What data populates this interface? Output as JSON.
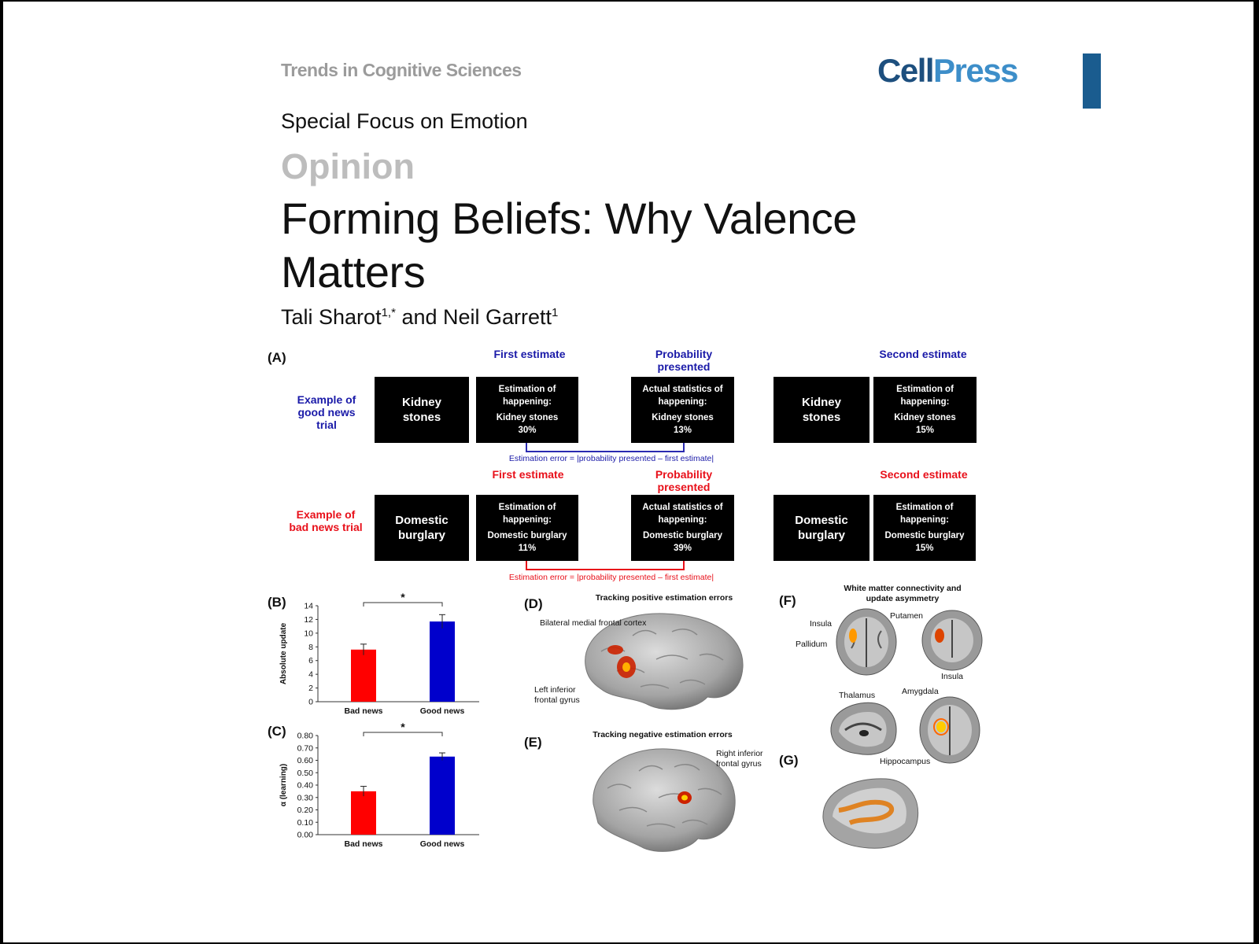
{
  "header": {
    "journal": "Trends in Cognitive Sciences",
    "logo_part1": "Cell",
    "logo_part2": "Press",
    "special_focus": "Special Focus on Emotion",
    "article_type": "Opinion",
    "title_line1": "Forming Beliefs: Why Valence",
    "title_line2": "Matters",
    "author1": "Tali Sharot",
    "author1_sup": "1,*",
    "and": " and Neil Garrett",
    "author2_sup": "1"
  },
  "figure": {
    "labels": {
      "a": "(A)",
      "b": "(B)",
      "c": "(C)",
      "d": "(D)",
      "e": "(E)",
      "f": "(F)",
      "g": "(G)"
    },
    "panel_a": {
      "good": {
        "trial_label": "Example of good news trial",
        "first_header": "First estimate",
        "prob_header": "Probability presented",
        "second_header": "Second estimate",
        "stimulus": "Kidney stones",
        "first_box": {
          "l1": "Estimation of",
          "l2": "happening:",
          "l3": "Kidney stones",
          "l4": "30%"
        },
        "prob_box": {
          "l1": "Actual statistics of",
          "l2": "happening:",
          "l3": "Kidney stones",
          "l4": "13%"
        },
        "second_box": {
          "l1": "Estimation of",
          "l2": "happening:",
          "l3": "Kidney stones",
          "l4": "15%"
        },
        "formula": "Estimation error = |probability presented – first estimate|"
      },
      "bad": {
        "trial_label": "Example of bad news trial",
        "first_header": "First estimate",
        "prob_header": "Probability presented",
        "second_header": "Second estimate",
        "stimulus": "Domestic burglary",
        "first_box": {
          "l1": "Estimation of",
          "l2": "happening:",
          "l3": "Domestic burglary",
          "l4": "11%"
        },
        "prob_box": {
          "l1": "Actual statistics of",
          "l2": "happening:",
          "l3": "Domestic burglary",
          "l4": "39%"
        },
        "second_box": {
          "l1": "Estimation of",
          "l2": "happening:",
          "l3": "Domestic burglary",
          "l4": "15%"
        },
        "formula": "Estimation error = |probability presented – first estimate|"
      }
    },
    "panel_d": {
      "title": "Tracking positive estimation errors",
      "label1": "Bilateral medial frontal cortex",
      "label2": "Left inferior frontal gyrus"
    },
    "panel_e": {
      "title": "Tracking negative estimation errors",
      "label1": "Right inferior frontal gyrus"
    },
    "panel_f": {
      "title": "White matter connectivity and update asymmetry",
      "insula": "Insula",
      "pallidum": "Pallidum",
      "putamen": "Putamen",
      "insula2": "Insula",
      "thalamus": "Thalamus",
      "amygdala": "Amygdala",
      "hippocampus": "Hippocampus"
    }
  },
  "chart_data": [
    {
      "type": "bar",
      "panel": "(B)",
      "categories": [
        "Bad news",
        "Good news"
      ],
      "values": [
        7.6,
        11.7
      ],
      "errors": [
        0.8,
        1.0
      ],
      "colors": [
        "#ff0000",
        "#0000cc"
      ],
      "ylabel": "Absolute update",
      "ylim": [
        0,
        14
      ],
      "yticks": [
        "0",
        "2",
        "4",
        "6",
        "8",
        "10",
        "12",
        "14"
      ],
      "significance": "*"
    },
    {
      "type": "bar",
      "panel": "(C)",
      "categories": [
        "Bad news",
        "Good news"
      ],
      "values": [
        0.35,
        0.63
      ],
      "errors": [
        0.04,
        0.03
      ],
      "colors": [
        "#ff0000",
        "#0000cc"
      ],
      "ylabel": "α (learning)",
      "ylim": [
        0,
        0.8
      ],
      "yticks": [
        "0.00",
        "0.10",
        "0.20",
        "0.30",
        "0.40",
        "0.50",
        "0.60",
        "0.70",
        "0.80"
      ],
      "significance": "*"
    }
  ]
}
